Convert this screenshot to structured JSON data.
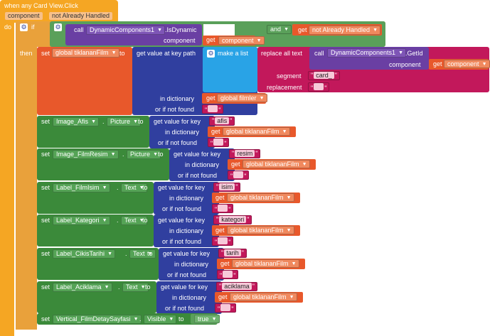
{
  "event": {
    "title": "when any Card View.Click",
    "params": [
      "component",
      "not Already Handled"
    ],
    "do_label": "do"
  },
  "if_block": {
    "keyword": "if",
    "then_label": "then",
    "call_label": "call",
    "component": "DynamicComponents1",
    "method": ".IsDynamic",
    "component_arg_label": "component",
    "get_component": "get",
    "get_component_var": "component",
    "and_label": "and",
    "get_not_handled": "get",
    "not_handled_var": "not Already Handled"
  },
  "set_film": {
    "set_label": "set",
    "var": "global tiklananFilm",
    "to_label": "to",
    "get_value_path": "get value at key path",
    "make_list": "make a list",
    "replace_all": "replace all text",
    "call_label": "call",
    "component": "DynamicComponents1",
    "method": ".GetId",
    "component_arg_label": "component",
    "get_label": "get",
    "get_var": "component",
    "segment_label": "segment",
    "segment_value": "card_",
    "replacement_label": "replacement",
    "replacement_value": "",
    "in_dict_label": "in dictionary",
    "dict_get": "get",
    "dict_var": "global filmler",
    "not_found_label": "or if not found",
    "not_found_value": ""
  },
  "setters": [
    {
      "set": "set",
      "comp": "Image_Afis",
      "dot": ".",
      "prop": "Picture",
      "to": "to",
      "gv": "get value for key",
      "key": "afis",
      "ind": "in dictionary",
      "get": "get",
      "var": "global tiklananFilm",
      "nf": "or if not found",
      "nfv": ""
    },
    {
      "set": "set",
      "comp": "Image_FilmResim",
      "dot": ".",
      "prop": "Picture",
      "to": "to",
      "gv": "get value for key",
      "key": "resim",
      "ind": "in dictionary",
      "get": "get",
      "var": "global tiklananFilm",
      "nf": "or if not found",
      "nfv": ""
    },
    {
      "set": "set",
      "comp": "Label_FilmIsim",
      "dot": ".",
      "prop": "Text",
      "to": "to",
      "gv": "get value for key",
      "key": "isim",
      "ind": "in dictionary",
      "get": "get",
      "var": "global tiklananFilm",
      "nf": "or if not found",
      "nfv": ""
    },
    {
      "set": "set",
      "comp": "Label_Kategori",
      "dot": ".",
      "prop": "Text",
      "to": "to",
      "gv": "get value for key",
      "key": "kategori",
      "ind": "in dictionary",
      "get": "get",
      "var": "global tiklananFilm",
      "nf": "or if not found",
      "nfv": ""
    },
    {
      "set": "set",
      "comp": "Label_CikisTarihi",
      "dot": ".",
      "prop": "Text",
      "to": "to",
      "gv": "get value for key",
      "key": "tarih",
      "ind": "in dictionary",
      "get": "get",
      "var": "global tiklananFilm",
      "nf": "or if not found",
      "nfv": ""
    },
    {
      "set": "set",
      "comp": "Label_Aciklama",
      "dot": ".",
      "prop": "Text",
      "to": "to",
      "gv": "get value for key",
      "key": "aciklama",
      "ind": "in dictionary",
      "get": "get",
      "var": "global tiklananFilm",
      "nf": "or if not found",
      "nfv": ""
    }
  ],
  "set_visible": {
    "set": "set",
    "comp": "Vertical_FilmDetaySayfasi",
    "dot": ".",
    "prop": "Visible",
    "to": "to",
    "value": "true"
  },
  "colors": {
    "event": "#f5a623",
    "control": "#4a8a3a",
    "variable": "#e8582b",
    "dictionary": "#303f9f",
    "list": "#29a3e6",
    "text": "#c2185b",
    "component": "#6a3fa3",
    "component_set": "#3b8a3a",
    "logic": "#5aa05a"
  }
}
